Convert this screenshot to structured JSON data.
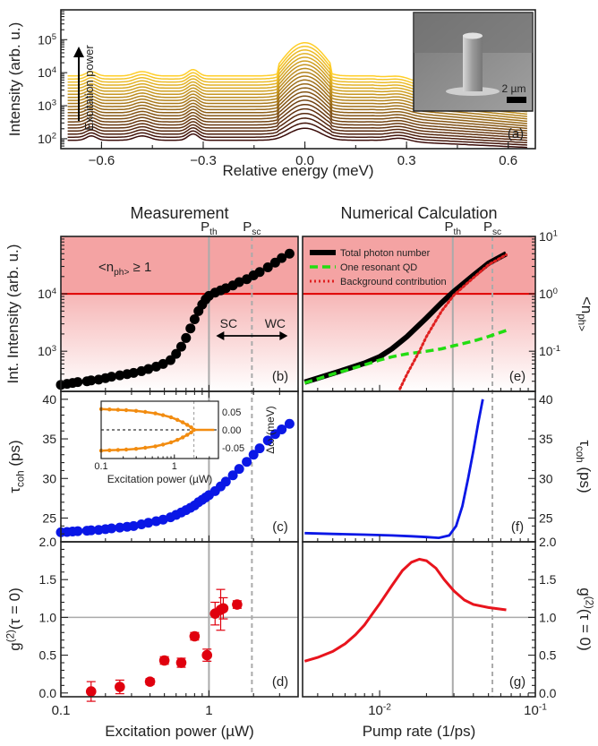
{
  "chart_data": [
    {
      "id": "a",
      "type": "line",
      "panel_label": "(a)",
      "xlabel": "Relative energy (meV)",
      "ylabel": "Intensity (arb. u.)",
      "xlim": [
        -0.72,
        0.68
      ],
      "ylim": [
        50,
        800000
      ],
      "yscale": "log",
      "x_ticks": [
        "-0.6",
        "-0.3",
        "0.0",
        "0.3",
        "0.6"
      ],
      "y_ticks": [
        "10^2",
        "10^3",
        "10^4",
        "10^5"
      ],
      "arrow_label": "Excitation power",
      "inset": {
        "type": "image",
        "description_label": "2 µm"
      },
      "series_count": 22,
      "series_base_min": 90,
      "series_base_max": 8000,
      "colors": [
        "#3a0b08",
        "#ffce2a"
      ]
    },
    {
      "id": "b",
      "type": "scatter",
      "panel_label": "(b)",
      "title": "Measurement",
      "ylabel": "Int. Intensity (arb. u.)",
      "xscale": "log",
      "yscale": "log",
      "xlim": [
        0.1,
        4
      ],
      "ylim": [
        200,
        100000
      ],
      "y_ticks": [
        "10^3",
        "10^4"
      ],
      "threshold_line": 10000,
      "threshold_label": "<n_ph> ≥ 1",
      "vlines": [
        {
          "x": 1.0,
          "label": "P_th",
          "style": "solid"
        },
        {
          "x": 1.95,
          "label": "P_sc",
          "style": "dashed"
        }
      ],
      "regime_labels": [
        "SC",
        "WC"
      ],
      "color": "#000000",
      "x": [
        0.1,
        0.11,
        0.12,
        0.13,
        0.15,
        0.16,
        0.18,
        0.2,
        0.22,
        0.25,
        0.28,
        0.31,
        0.35,
        0.39,
        0.44,
        0.49,
        0.55,
        0.6,
        0.65,
        0.7,
        0.75,
        0.8,
        0.85,
        0.9,
        0.95,
        1.0,
        1.1,
        1.2,
        1.3,
        1.45,
        1.6,
        1.8,
        2.0,
        2.2,
        2.5,
        2.8,
        3.1,
        3.5
      ],
      "y": [
        260,
        270,
        280,
        290,
        300,
        310,
        320,
        340,
        360,
        380,
        400,
        420,
        450,
        490,
        540,
        600,
        700,
        900,
        1200,
        1700,
        2500,
        3600,
        5000,
        6500,
        8000,
        9200,
        10500,
        11500,
        12500,
        14000,
        16000,
        18000,
        21000,
        24000,
        29000,
        35000,
        42000,
        50000
      ]
    },
    {
      "id": "c",
      "type": "scatter",
      "panel_label": "(c)",
      "ylabel": "τ_coh (ps)",
      "xscale": "log",
      "xlim": [
        0.1,
        4
      ],
      "ylim": [
        22,
        41
      ],
      "y_ticks": [
        "25",
        "30",
        "35",
        "40"
      ],
      "color": "#0a17e6",
      "x": [
        0.1,
        0.11,
        0.12,
        0.13,
        0.15,
        0.16,
        0.18,
        0.2,
        0.22,
        0.25,
        0.28,
        0.31,
        0.35,
        0.39,
        0.44,
        0.49,
        0.55,
        0.6,
        0.65,
        0.7,
        0.75,
        0.8,
        0.85,
        0.9,
        0.95,
        1.0,
        1.1,
        1.2,
        1.3,
        1.45,
        1.6,
        1.8,
        2.0,
        2.2,
        2.5,
        2.8,
        3.1,
        3.5
      ],
      "y": [
        23.2,
        23.25,
        23.3,
        23.35,
        23.4,
        23.45,
        23.5,
        23.6,
        23.7,
        23.8,
        23.9,
        24.0,
        24.2,
        24.4,
        24.6,
        24.8,
        25.1,
        25.4,
        25.7,
        26.0,
        26.3,
        26.6,
        27.0,
        27.3,
        27.6,
        27.9,
        28.4,
        29.0,
        29.6,
        30.4,
        31.2,
        32.1,
        33.0,
        33.8,
        34.8,
        35.6,
        36.2,
        36.9
      ],
      "inset": {
        "xlabel": "Excitation power (µW)",
        "ylabel": "Δω (meV)",
        "x_ticks": [
          "0.1",
          "1"
        ],
        "y_ticks": [
          "0.05",
          "0.00",
          "-0.05"
        ],
        "xlim": [
          0.1,
          4
        ],
        "ylim": [
          -0.08,
          0.08
        ],
        "branch_x": [
          0.1,
          0.13,
          0.17,
          0.22,
          0.3,
          0.4,
          0.55,
          0.7,
          0.9,
          1.1,
          1.3,
          1.5,
          1.7,
          1.85
        ],
        "upper_y": [
          0.058,
          0.057,
          0.056,
          0.055,
          0.053,
          0.05,
          0.046,
          0.041,
          0.035,
          0.028,
          0.021,
          0.014,
          0.007,
          0.0
        ],
        "lower_y": [
          -0.058,
          -0.057,
          -0.056,
          -0.055,
          -0.053,
          -0.05,
          -0.046,
          -0.041,
          -0.035,
          -0.028,
          -0.021,
          -0.014,
          -0.007,
          0.0
        ],
        "tail_x": [
          1.85,
          2.1,
          2.5,
          3.0,
          3.5
        ],
        "tail_y": [
          0.0,
          0.0,
          0.0,
          0.0,
          0.0
        ],
        "color": "#f28c10"
      }
    },
    {
      "id": "d",
      "type": "scatter",
      "panel_label": "(d)",
      "ylabel": "g^(2)(τ = 0)",
      "xlabel": "Excitation power (µW)",
      "xscale": "log",
      "xlim": [
        0.1,
        4
      ],
      "ylim": [
        -0.05,
        2.0
      ],
      "y_ticks": [
        "0.0",
        "0.5",
        "1.0",
        "1.5",
        "2.0"
      ],
      "x_ticks": [
        "0.1",
        "1"
      ],
      "hline": 1.0,
      "color": "#e0000e",
      "x": [
        0.16,
        0.25,
        0.4,
        0.5,
        0.65,
        0.8,
        0.97,
        1.1,
        1.2,
        1.25,
        1.55
      ],
      "y": [
        0.02,
        0.08,
        0.15,
        0.43,
        0.4,
        0.75,
        0.5,
        1.05,
        1.1,
        1.12,
        1.17
      ],
      "err": [
        0.13,
        0.09,
        0.04,
        0.05,
        0.06,
        0.05,
        0.08,
        0.15,
        0.27,
        0.14,
        0.05
      ]
    },
    {
      "id": "e",
      "type": "line",
      "panel_label": "(e)",
      "title": "Numerical Calculation",
      "ylabel": "<n_ph>",
      "xscale": "log",
      "yscale": "log",
      "xlim": [
        0.0032,
        0.1
      ],
      "ylim": [
        0.02,
        10
      ],
      "y_ticks": [
        "10^-1",
        "10^0",
        "10^1"
      ],
      "threshold_line": 1,
      "vlines": [
        {
          "x": 0.0295,
          "label": "P_th",
          "style": "solid"
        },
        {
          "x": 0.053,
          "label": "P_sc",
          "style": "dashed"
        }
      ],
      "legend": [
        "Total photon number",
        "One resonant QD",
        "Background contribution"
      ],
      "series": [
        {
          "name": "Total photon number",
          "color": "#000000",
          "style": "solid",
          "x": [
            0.0033,
            0.004,
            0.005,
            0.006,
            0.008,
            0.01,
            0.012,
            0.015,
            0.02,
            0.025,
            0.03,
            0.04,
            0.05,
            0.065
          ],
          "y": [
            0.029,
            0.034,
            0.041,
            0.048,
            0.062,
            0.08,
            0.11,
            0.18,
            0.38,
            0.7,
            1.1,
            2.1,
            3.4,
            5.0
          ]
        },
        {
          "name": "One resonant QD",
          "color": "#22dd11",
          "style": "dashed",
          "x": [
            0.0033,
            0.004,
            0.005,
            0.006,
            0.008,
            0.01,
            0.012,
            0.015,
            0.02,
            0.025,
            0.03,
            0.04,
            0.05,
            0.065
          ],
          "y": [
            0.028,
            0.033,
            0.04,
            0.046,
            0.058,
            0.07,
            0.08,
            0.09,
            0.1,
            0.11,
            0.125,
            0.15,
            0.18,
            0.23
          ]
        },
        {
          "name": "Background contribution",
          "color": "#e02020",
          "style": "dotted",
          "x": [
            0.0135,
            0.015,
            0.018,
            0.02,
            0.025,
            0.03,
            0.04,
            0.05,
            0.065
          ],
          "y": [
            0.022,
            0.04,
            0.1,
            0.18,
            0.5,
            0.95,
            1.9,
            3.2,
            4.8
          ]
        }
      ]
    },
    {
      "id": "f",
      "type": "line",
      "panel_label": "(f)",
      "ylabel": "τ_coh (ps)",
      "xscale": "log",
      "xlim": [
        0.0032,
        0.1
      ],
      "ylim": [
        22,
        41
      ],
      "y_ticks": [
        "25",
        "30",
        "35",
        "40"
      ],
      "color": "#0a17e6",
      "x": [
        0.0033,
        0.005,
        0.008,
        0.012,
        0.016,
        0.02,
        0.024,
        0.028,
        0.031,
        0.034,
        0.037,
        0.04,
        0.043,
        0.046
      ],
      "y": [
        23.1,
        23.0,
        22.9,
        22.8,
        22.7,
        22.6,
        22.5,
        22.8,
        24.0,
        26.5,
        30.0,
        33.5,
        37.0,
        40.0
      ]
    },
    {
      "id": "g",
      "type": "line",
      "panel_label": "(g)",
      "ylabel": "g^(2)(τ = 0)",
      "xlabel": "Pump rate (1/ps)",
      "xscale": "log",
      "xlim": [
        0.0032,
        0.1
      ],
      "ylim": [
        -0.05,
        2.0
      ],
      "y_ticks": [
        "0.0",
        "0.5",
        "1.0",
        "1.5",
        "2.0"
      ],
      "x_ticks": [
        "10^-2",
        "10^-1"
      ],
      "hline": 1.0,
      "color": "#e8141d",
      "x": [
        0.0033,
        0.004,
        0.005,
        0.006,
        0.007,
        0.008,
        0.009,
        0.01,
        0.012,
        0.014,
        0.016,
        0.018,
        0.02,
        0.023,
        0.026,
        0.03,
        0.035,
        0.04,
        0.05,
        0.065
      ],
      "y": [
        0.42,
        0.47,
        0.55,
        0.65,
        0.77,
        0.9,
        1.05,
        1.18,
        1.42,
        1.62,
        1.73,
        1.77,
        1.75,
        1.65,
        1.5,
        1.35,
        1.23,
        1.17,
        1.13,
        1.1
      ]
    }
  ]
}
